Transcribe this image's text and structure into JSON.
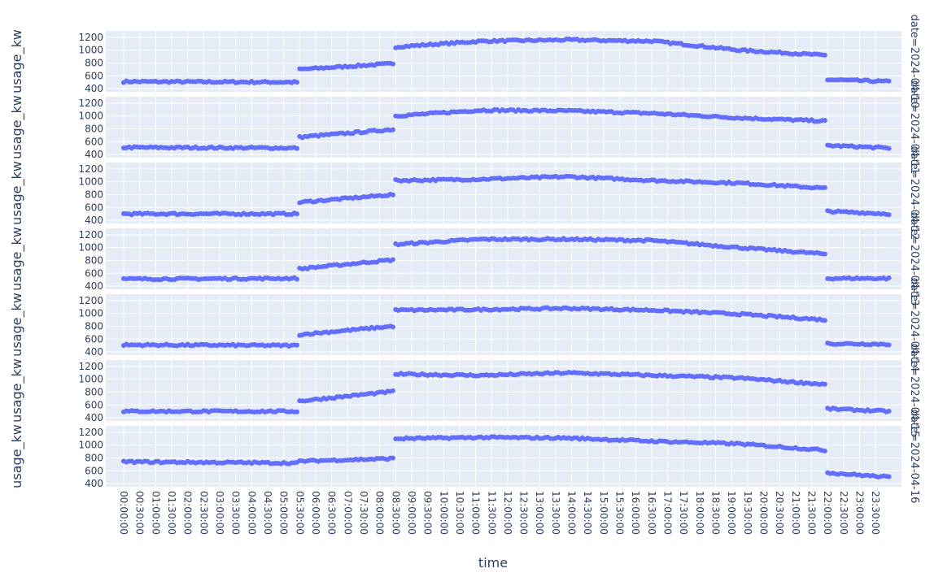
{
  "chart_data": {
    "type": "scatter",
    "title": "",
    "xlabel": "time",
    "ylabel": "usage_kw",
    "marker_color": "#636efa",
    "plot_background": "#e5ecf6",
    "grid": true,
    "y_ticks": [
      400,
      600,
      800,
      1000,
      1200
    ],
    "ylim": [
      350,
      1300
    ],
    "x_ticks": [
      "00:00:00",
      "00:30:00",
      "01:00:00",
      "01:30:00",
      "02:00:00",
      "02:30:00",
      "03:00:00",
      "03:30:00",
      "04:00:00",
      "04:30:00",
      "05:00:00",
      "05:30:00",
      "06:00:00",
      "06:30:00",
      "07:00:00",
      "07:30:00",
      "08:00:00",
      "08:30:00",
      "09:00:00",
      "09:30:00",
      "10:00:00",
      "10:30:00",
      "11:00:00",
      "11:30:00",
      "12:00:00",
      "12:30:00",
      "13:00:00",
      "13:30:00",
      "14:00:00",
      "14:30:00",
      "15:00:00",
      "15:30:00",
      "16:00:00",
      "16:30:00",
      "17:00:00",
      "17:30:00",
      "18:00:00",
      "18:30:00",
      "19:00:00",
      "19:30:00",
      "20:00:00",
      "20:30:00",
      "21:00:00",
      "21:30:00",
      "22:00:00",
      "22:30:00",
      "23:00:00",
      "23:30:00"
    ],
    "x_range_minutes": [
      0,
      1425
    ],
    "facet_labels": [
      "date=2024-04-10",
      "date=2024-04-11",
      "date=2024-04-12",
      "date=2024-04-13",
      "date=2024-04-14",
      "date=2024-04-15",
      "date=2024-04-16"
    ],
    "sampling_interval_minutes": 5,
    "segments": [
      {
        "start": "00:00:00",
        "end": "05:25:00"
      },
      {
        "start": "05:30:00",
        "end": "08:25:00"
      },
      {
        "start": "08:30:00",
        "end": "21:55:00"
      },
      {
        "start": "22:00:00",
        "end": "23:55:00"
      }
    ],
    "series": [
      {
        "facet": "date=2024-04-10",
        "segment_levels": [
          [
            510,
            500
          ],
          [
            700,
            790
          ],
          [
            1050,
            1140,
            1160,
            1140,
            1000,
            920
          ],
          [
            540,
            510
          ]
        ]
      },
      {
        "facet": "date=2024-04-11",
        "segment_levels": [
          [
            510,
            500
          ],
          [
            670,
            790
          ],
          [
            1000,
            1090,
            1080,
            1040,
            970,
            920
          ],
          [
            540,
            500
          ]
        ]
      },
      {
        "facet": "date=2024-04-12",
        "segment_levels": [
          [
            500,
            500
          ],
          [
            680,
            800
          ],
          [
            1020,
            1040,
            1080,
            1020,
            980,
            900
          ],
          [
            540,
            500
          ]
        ]
      },
      {
        "facet": "date=2024-04-13",
        "segment_levels": [
          [
            510,
            520
          ],
          [
            670,
            810
          ],
          [
            1050,
            1130,
            1130,
            1110,
            1000,
            900
          ],
          [
            520,
            520
          ]
        ]
      },
      {
        "facet": "date=2024-04-14",
        "segment_levels": [
          [
            510,
            500
          ],
          [
            670,
            800
          ],
          [
            1050,
            1060,
            1080,
            1050,
            990,
            900
          ],
          [
            530,
            520
          ]
        ]
      },
      {
        "facet": "date=2024-04-15",
        "segment_levels": [
          [
            500,
            500
          ],
          [
            660,
            810
          ],
          [
            1080,
            1060,
            1100,
            1060,
            1020,
            920
          ],
          [
            540,
            500
          ]
        ]
      },
      {
        "facet": "date=2024-04-16",
        "segment_levels": [
          [
            740,
            720
          ],
          [
            750,
            790
          ],
          [
            1100,
            1120,
            1110,
            1060,
            1020,
            920
          ],
          [
            570,
            500
          ]
        ]
      }
    ]
  }
}
